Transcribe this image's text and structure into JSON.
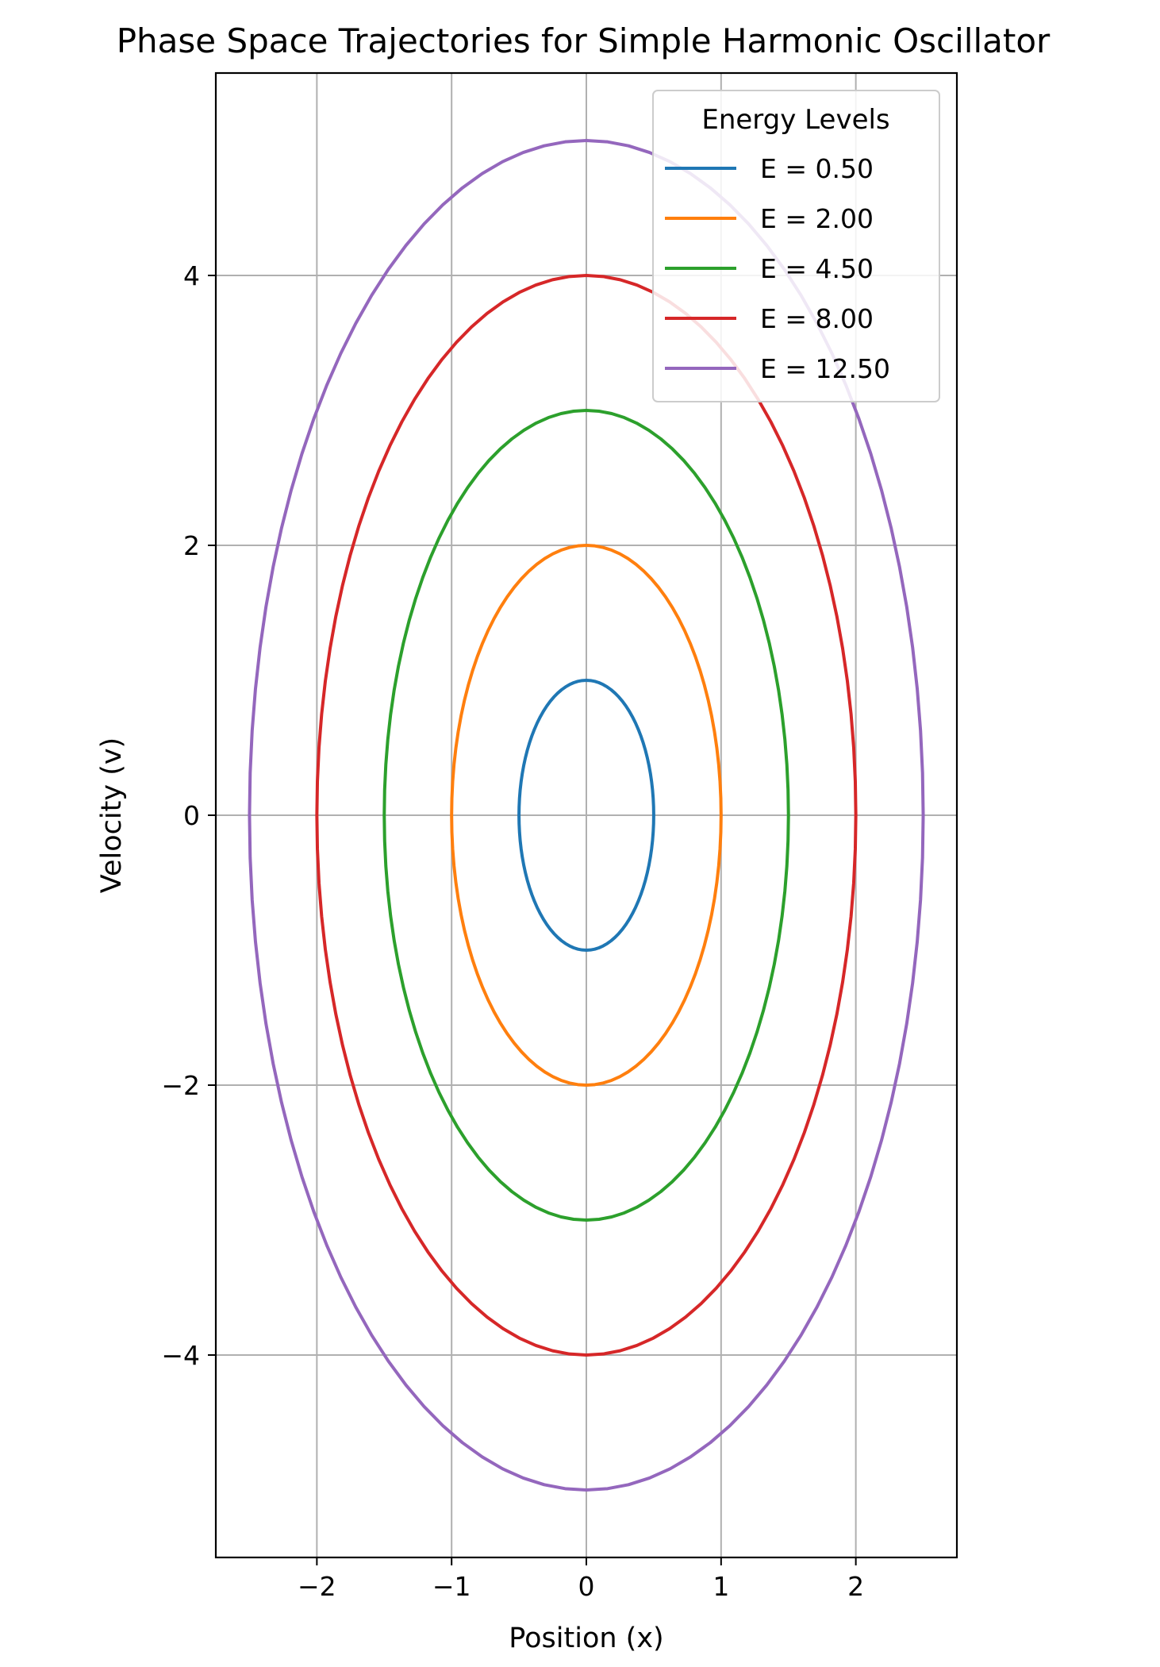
{
  "chart_data": {
    "type": "line",
    "title": "Phase Space Trajectories for Simple Harmonic Oscillator",
    "xlabel": "Position (x)",
    "ylabel": "Velocity (v)",
    "xlim": [
      -2.75,
      2.75
    ],
    "ylim": [
      -5.5,
      5.5
    ],
    "xticks": [
      -2,
      -1,
      0,
      1,
      2
    ],
    "xtick_labels": [
      "−2",
      "−1",
      "0",
      "1",
      "2"
    ],
    "yticks": [
      -4,
      -2,
      0,
      2,
      4
    ],
    "ytick_labels": [
      "−4",
      "−2",
      "0",
      "2",
      "4"
    ],
    "grid": true,
    "legend": {
      "title": "Energy Levels",
      "placement": "top-right"
    },
    "series": [
      {
        "name": "E = 0.50",
        "energy": 0.5,
        "x_amplitude": 0.5,
        "v_amplitude": 1.0,
        "color": "#1f77b4"
      },
      {
        "name": "E = 2.00",
        "energy": 2.0,
        "x_amplitude": 1.0,
        "v_amplitude": 2.0,
        "color": "#ff7f0e"
      },
      {
        "name": "E = 4.50",
        "energy": 4.5,
        "x_amplitude": 1.5,
        "v_amplitude": 3.0,
        "color": "#2ca02c"
      },
      {
        "name": "E = 8.00",
        "energy": 8.0,
        "x_amplitude": 2.0,
        "v_amplitude": 4.0,
        "color": "#d62728"
      },
      {
        "name": "E = 12.50",
        "energy": 12.5,
        "x_amplitude": 2.5,
        "v_amplitude": 5.0,
        "color": "#9467bd"
      }
    ]
  }
}
